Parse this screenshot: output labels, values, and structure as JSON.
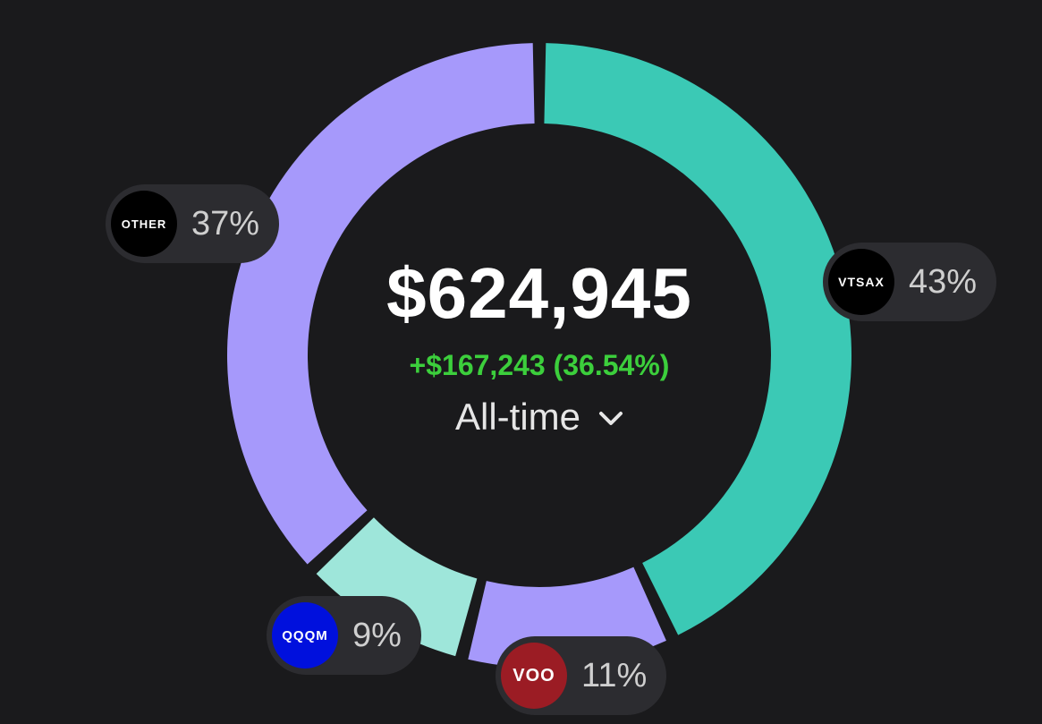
{
  "summary": {
    "total_value": "$624,945",
    "change": "+$167,243 (36.54%)",
    "period_label": "All-time",
    "period_icon": "chevron-down-icon"
  },
  "colors": {
    "background": "#1a1a1c",
    "change_positive": "#3ccf3c"
  },
  "chart_data": {
    "type": "pie",
    "series": [
      {
        "ticker": "VTSAX",
        "value": 43,
        "label": "43%",
        "color": "#3bc9b5",
        "badge_color": "#000000"
      },
      {
        "ticker": "VOO",
        "value": 11,
        "label": "11%",
        "color": "#a699fb",
        "badge_color": "#9b1c24"
      },
      {
        "ticker": "QQQM",
        "value": 9,
        "label": "9%",
        "color": "#9ee6da",
        "badge_color": "#0010dd"
      },
      {
        "ticker": "OTHER",
        "value": 37,
        "label": "37%",
        "color": "#a699fb",
        "badge_color": "#000000"
      }
    ]
  }
}
